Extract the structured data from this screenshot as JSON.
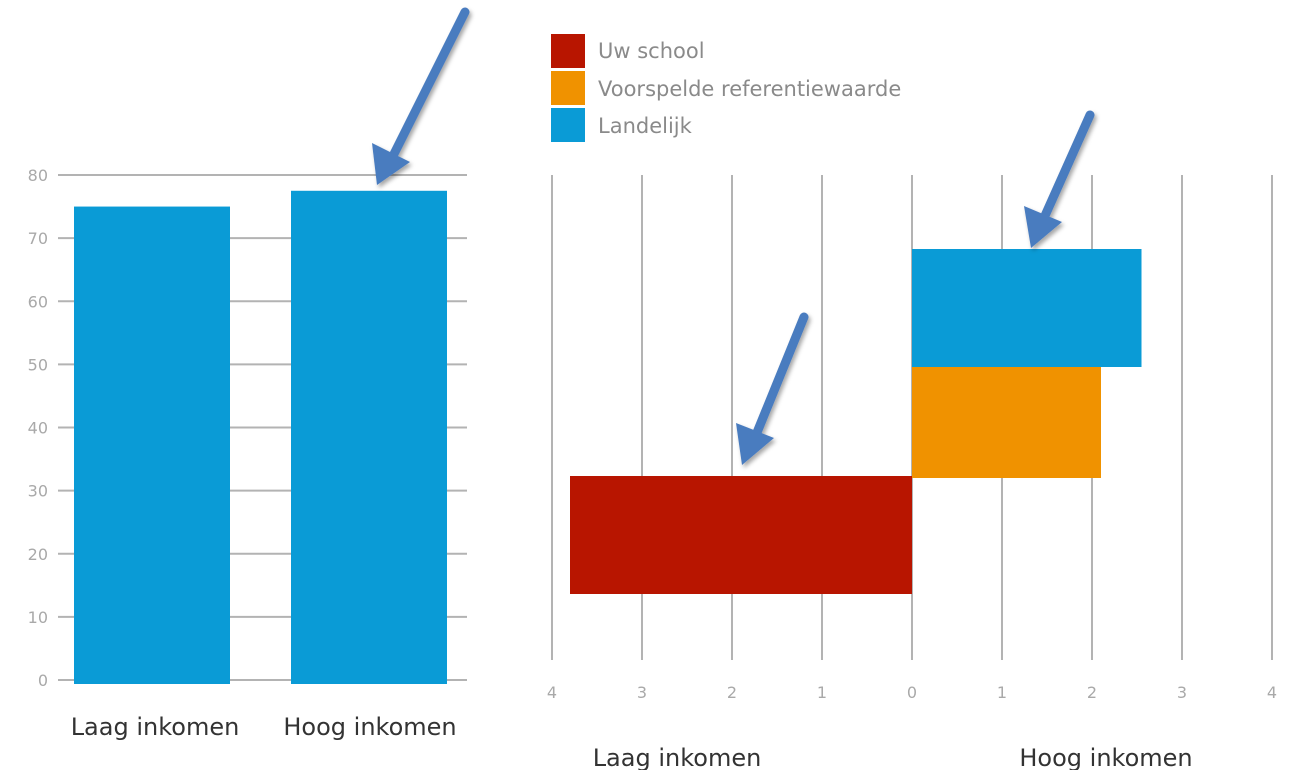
{
  "chart_data": [
    {
      "type": "bar",
      "categories": [
        "Laag inkomen",
        "Hoog inkomen"
      ],
      "values": [
        75,
        77.5
      ],
      "ylim": [
        0,
        80
      ],
      "yticks": [
        "0",
        "10",
        "20",
        "30",
        "40",
        "50",
        "60",
        "70",
        "80"
      ],
      "grid": true,
      "color": "#0a9bd6"
    },
    {
      "type": "bar",
      "orientation": "horizontal-diverging",
      "xlim": [
        -4,
        4
      ],
      "xticks": [
        "4",
        "3",
        "2",
        "1",
        "0",
        "1",
        "2",
        "3",
        "4"
      ],
      "group_labels": [
        "Laag inkomen",
        "Hoog inkomen"
      ],
      "legend": [
        {
          "name": "Uw school",
          "color": "#b81500"
        },
        {
          "name": "Voorspelde referentiewaarde",
          "color": "#f09200"
        },
        {
          "name": "Landelijk",
          "color": "#0a9bd6"
        }
      ],
      "bars": [
        {
          "series": "Landelijk",
          "value": 2.55
        },
        {
          "series": "Voorspelde referentiewaarde",
          "value": 2.1
        },
        {
          "series": "Uw school",
          "value": -3.8
        }
      ],
      "grid": true,
      "legend_position": "top"
    }
  ],
  "colors": {
    "arrow": "#4a7cbf",
    "grid": "#b3b3b3"
  }
}
